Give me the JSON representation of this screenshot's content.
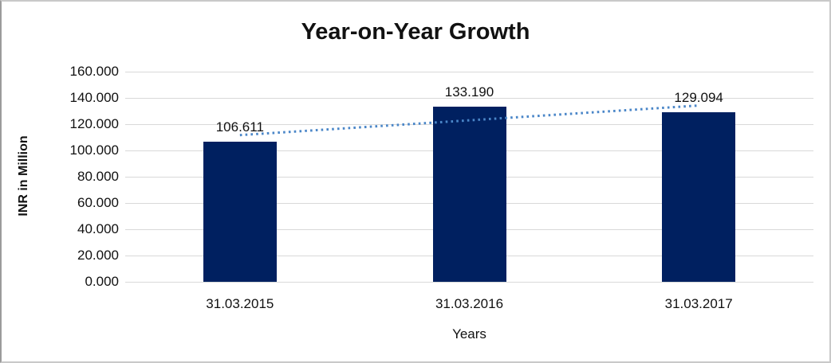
{
  "chart_data": {
    "type": "bar",
    "title": "Year-on-Year Growth",
    "ylabel": "INR in Million",
    "xlabel": "Years",
    "categories": [
      "31.03.2015",
      "31.03.2016",
      "31.03.2017"
    ],
    "values": [
      106.611,
      133.19,
      129.094
    ],
    "data_labels": [
      "106.611",
      "133.190",
      "129.094"
    ],
    "ylim": [
      0,
      160
    ],
    "ytick_step": 20,
    "ytick_labels_top_to_bottom": [
      "160.000",
      "140.000",
      "120.000",
      "100.000",
      "80.000",
      "60.000",
      "40.000",
      "20.000",
      "0.000"
    ],
    "grid": true,
    "legend_position": "none",
    "bar_color": "#002060",
    "gridline_color": "#d9d9d9",
    "trendline": {
      "type": "linear",
      "style": "dotted",
      "color": "#4a86c8",
      "start_value": 111.7,
      "end_value": 134.2
    }
  }
}
